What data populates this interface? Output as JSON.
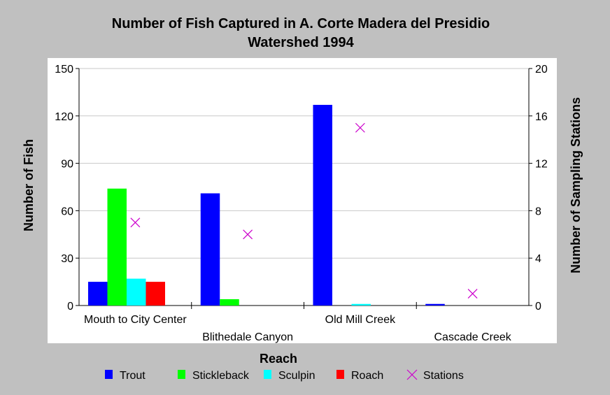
{
  "chart_data": {
    "type": "bar",
    "title_lines": [
      "Number of Fish Captured in A. Corte Madera del Presidio",
      "Watershed 1994"
    ],
    "xlabel": "Reach",
    "ylabel": "Number of Fish",
    "y2label": "Number of Sampling Stations",
    "categories": [
      "Mouth to City Center",
      "Blithedale Canyon",
      "Old Mill Creek",
      "Cascade Creek"
    ],
    "ylim": [
      0,
      150
    ],
    "yticks": [
      0,
      30,
      60,
      90,
      120,
      150
    ],
    "y2lim": [
      0,
      20
    ],
    "y2ticks": [
      0,
      4,
      8,
      12,
      16,
      20
    ],
    "grid": true,
    "legend_position": "bottom",
    "series": [
      {
        "name": "Trout",
        "color": "#0000ff",
        "values": [
          15,
          71,
          127,
          1
        ]
      },
      {
        "name": "Stickleback",
        "color": "#00ff00",
        "values": [
          74,
          4,
          0,
          0
        ]
      },
      {
        "name": "Sculpin",
        "color": "#00ffff",
        "values": [
          17,
          0,
          1,
          0
        ]
      },
      {
        "name": "Roach",
        "color": "#ff0000",
        "values": [
          15,
          0,
          0,
          0
        ]
      }
    ],
    "stations": {
      "name": "Stations",
      "color": "#cc00cc",
      "marker": "x-mark",
      "axis": "right",
      "values": [
        7,
        6,
        15,
        1
      ]
    }
  }
}
